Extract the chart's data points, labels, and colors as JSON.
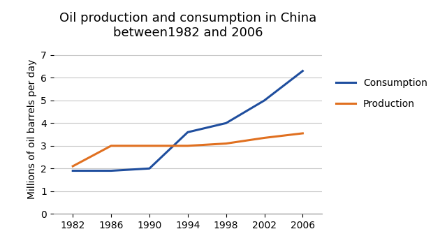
{
  "title": "Oil production and consumption in China\nbetween1982 and 2006",
  "ylabel": "Millions of oil barrels per day",
  "years": [
    1982,
    1986,
    1990,
    1994,
    1998,
    2002,
    2006
  ],
  "consumption": [
    1.9,
    1.9,
    2.0,
    3.6,
    4.0,
    5.0,
    6.3
  ],
  "production": [
    2.1,
    3.0,
    3.0,
    3.0,
    3.1,
    3.35,
    3.55
  ],
  "consumption_color": "#1f4e9e",
  "production_color": "#e07020",
  "ylim": [
    0,
    7.5
  ],
  "yticks": [
    0,
    1,
    2,
    3,
    4,
    5,
    6,
    7
  ],
  "legend_consumption": "Consumption",
  "legend_production": "Production",
  "title_fontsize": 13,
  "tick_fontsize": 10,
  "ylabel_fontsize": 10,
  "legend_fontsize": 10,
  "line_width": 2.2,
  "bg_color": "#ffffff",
  "grid_color": "#c8c8c8"
}
